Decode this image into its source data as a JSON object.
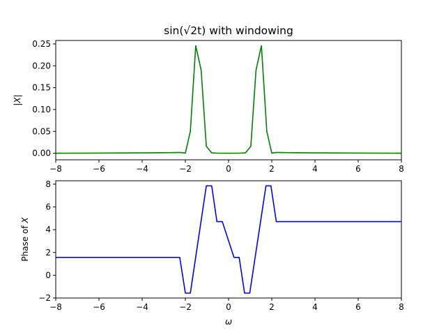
{
  "figure": {
    "title": "sin(√2t) with windowing"
  },
  "chart_data": [
    {
      "type": "line",
      "title": "sin(√2t) with windowing",
      "xlabel": "",
      "ylabel": "|X|",
      "xlim": [
        -8,
        8
      ],
      "ylim": [
        -0.015,
        0.258
      ],
      "xticks": [
        -8,
        -6,
        -4,
        -2,
        0,
        2,
        4,
        6,
        8
      ],
      "xtick_labels": [
        "−8",
        "−6",
        "−4",
        "−2",
        "0",
        "2",
        "4",
        "6",
        "8"
      ],
      "yticks": [
        0.0,
        0.05,
        0.1,
        0.15,
        0.2,
        0.25
      ],
      "ytick_labels": [
        "0.00",
        "0.05",
        "0.10",
        "0.15",
        "0.20",
        "0.25"
      ],
      "grid": false,
      "series": [
        {
          "color": "#008000",
          "x": [
            -8,
            -5,
            -4,
            -3,
            -2.4,
            -2.2,
            -2.0,
            -1.77,
            -1.52,
            -1.27,
            -1.03,
            -0.78,
            -0.5,
            0,
            0.5,
            0.78,
            1.03,
            1.27,
            1.52,
            1.77,
            2.0,
            2.2,
            2.4,
            3,
            4,
            5,
            8
          ],
          "y": [
            0.0,
            0.0006,
            0.0009,
            0.0013,
            0.0016,
            0.0017,
            0.0005,
            0.05,
            0.246,
            0.19,
            0.016,
            0.0008,
            0.0003,
            0.0,
            0.0003,
            0.0008,
            0.016,
            0.19,
            0.246,
            0.05,
            0.0005,
            0.0017,
            0.0016,
            0.0013,
            0.0009,
            0.0006,
            0.0
          ]
        }
      ]
    },
    {
      "type": "line",
      "title": "",
      "xlabel": "ω",
      "ylabel": "Phase of X",
      "xlim": [
        -8,
        8
      ],
      "ylim": [
        -2,
        8.3
      ],
      "xticks": [
        -8,
        -6,
        -4,
        -2,
        0,
        2,
        4,
        6,
        8
      ],
      "xtick_labels": [
        "−8",
        "−6",
        "−4",
        "−2",
        "0",
        "2",
        "4",
        "6",
        "8"
      ],
      "yticks": [
        -2,
        0,
        2,
        4,
        6,
        8
      ],
      "ytick_labels": [
        "−2",
        "0",
        "2",
        "4",
        "6",
        "8"
      ],
      "grid": false,
      "series": [
        {
          "color": "#0000ff",
          "x": [
            -8,
            -2.3,
            -2.26,
            -2.0,
            -1.77,
            -1.03,
            -0.78,
            -0.54,
            -0.29,
            0.25,
            0.49,
            0.74,
            0.98,
            1.73,
            1.96,
            2.21,
            8
          ],
          "y": [
            1.57,
            1.57,
            1.57,
            -1.57,
            -1.57,
            7.85,
            7.85,
            4.71,
            4.71,
            1.57,
            1.57,
            -1.57,
            -1.57,
            7.85,
            7.85,
            4.71,
            4.71
          ]
        }
      ]
    }
  ]
}
